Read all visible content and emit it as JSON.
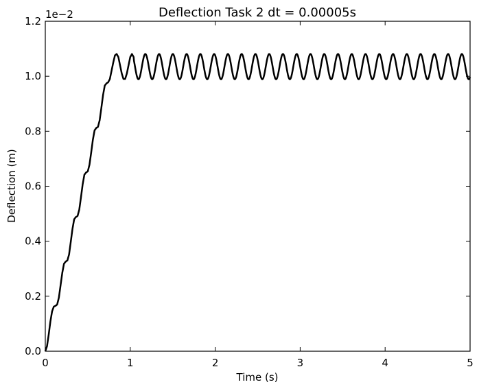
{
  "chart_data": {
    "type": "line",
    "title": "Deflection Task 2 dt = 0.00005s",
    "xlabel": "Time (s)",
    "ylabel": "Deflection (m)",
    "y_multiplier_label": "1e−2",
    "xlim": [
      0,
      5
    ],
    "ylim": [
      0,
      1.2
    ],
    "y_scale_factor": 0.01,
    "x_ticks": [
      0,
      1,
      2,
      3,
      4,
      5
    ],
    "x_tick_labels": [
      "0",
      "1",
      "2",
      "3",
      "4",
      "5"
    ],
    "y_ticks": [
      0,
      0.2,
      0.4,
      0.6,
      0.8,
      1.0,
      1.2
    ],
    "y_tick_labels": [
      "0.0",
      "0.2",
      "0.4",
      "0.6",
      "0.8",
      "1.0",
      "1.2"
    ],
    "grid": false,
    "legend": "none",
    "line_color": "#000000",
    "series": [
      {
        "description_of_shape": "staircase rise (plateaus of ~0.162 per step) until t≈1.0, then steady oscillation",
        "x": [
          0,
          0.02,
          0.04,
          0.06,
          0.08,
          0.1,
          0.12,
          0.14,
          0.16,
          0.18,
          0.2,
          0.22,
          0.24,
          0.26,
          0.28,
          0.3,
          0.32,
          0.34,
          0.36,
          0.38,
          0.4,
          0.42,
          0.44,
          0.46,
          0.48,
          0.5,
          0.52,
          0.54,
          0.56,
          0.58,
          0.6,
          0.62,
          0.64,
          0.66,
          0.68,
          0.7,
          0.72,
          0.74,
          0.76,
          0.78,
          0.8,
          0.82,
          0.84,
          0.86,
          0.88,
          0.9,
          0.92,
          0.94,
          0.96,
          0.98,
          1.0,
          1.02,
          1.04
        ],
        "y": [
          0.0,
          0.018,
          0.06,
          0.108,
          0.145,
          0.162,
          0.165,
          0.17,
          0.195,
          0.24,
          0.285,
          0.318,
          0.326,
          0.33,
          0.352,
          0.398,
          0.445,
          0.48,
          0.488,
          0.492,
          0.515,
          0.56,
          0.607,
          0.642,
          0.65,
          0.654,
          0.678,
          0.722,
          0.769,
          0.803,
          0.812,
          0.816,
          0.84,
          0.885,
          0.932,
          0.966,
          0.974,
          0.978,
          0.99,
          1.02,
          1.05,
          1.076,
          1.081,
          1.07,
          1.04,
          1.01,
          0.99,
          0.99,
          1.01,
          1.04,
          1.07,
          1.081,
          1.07
        ]
      }
    ],
    "oscillation": {
      "t_start": 1.04,
      "t_end": 5.0,
      "center": 1.035,
      "amplitude": 0.046,
      "period": 0.162
    }
  }
}
